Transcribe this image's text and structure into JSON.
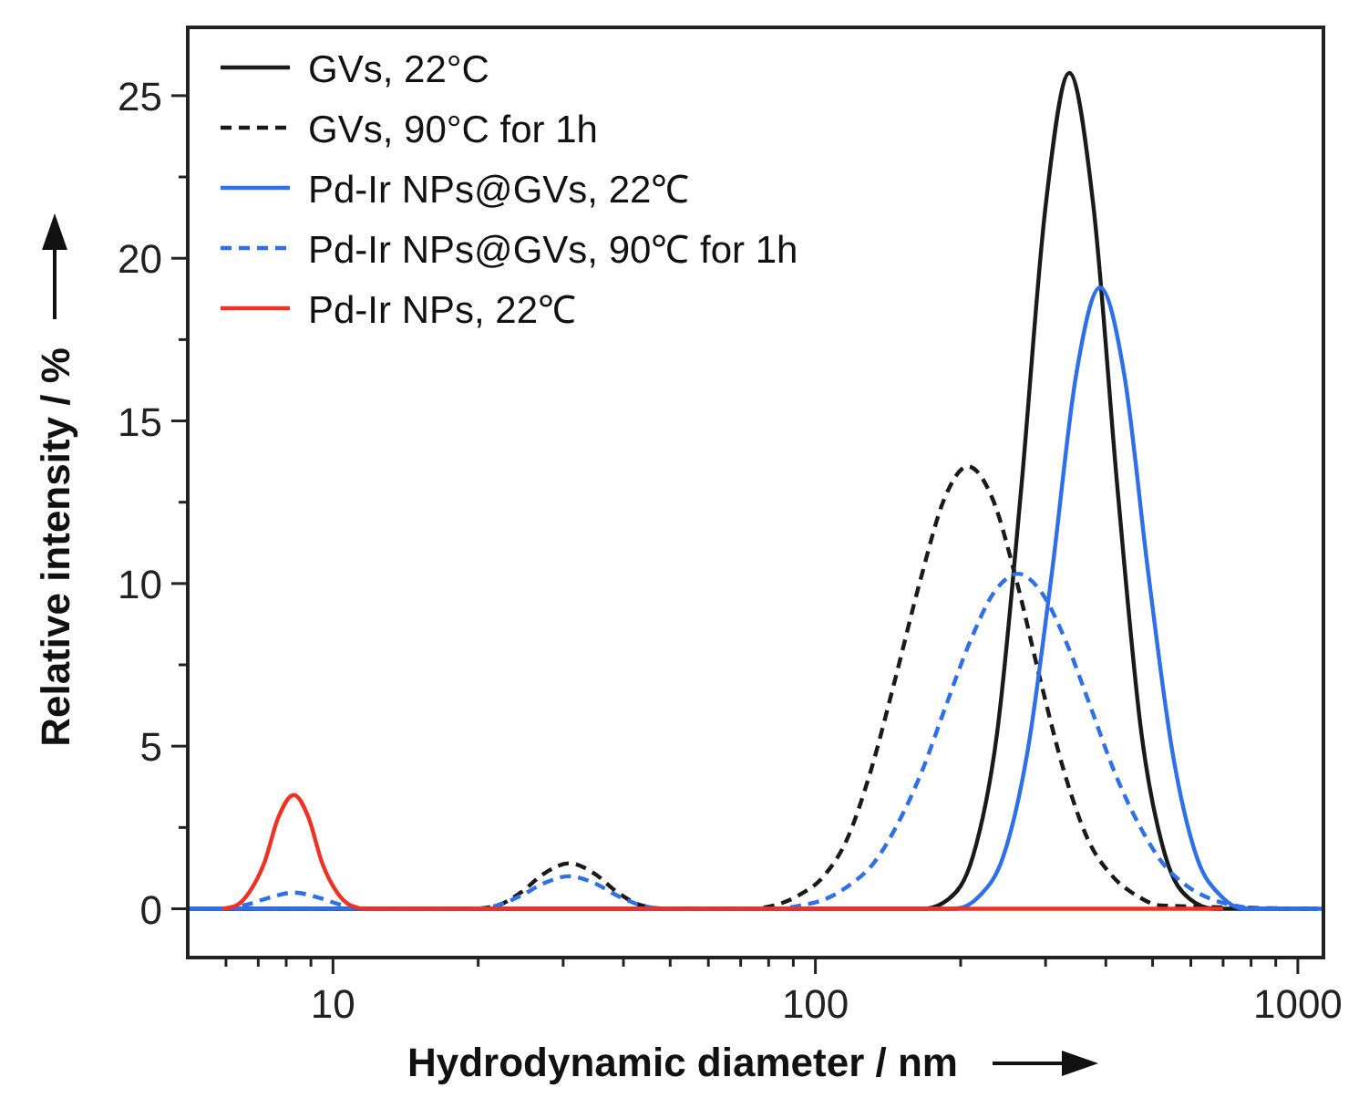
{
  "chart_data": {
    "type": "line",
    "xlabel": "Hydrodynamic diameter / nm",
    "ylabel": "Relative intensity / %",
    "log": "x",
    "grid": false,
    "legend": "top left",
    "xlim": [
      5,
      1130
    ],
    "ylim": [
      -1.5,
      27.1
    ],
    "xticks": [
      {
        "value": 6,
        "label": null
      },
      {
        "value": 7,
        "label": null
      },
      {
        "value": 8,
        "label": null
      },
      {
        "value": 9,
        "label": null
      },
      10,
      {
        "value": 20,
        "label": null
      },
      {
        "value": 30,
        "label": null
      },
      {
        "value": 40,
        "label": null
      },
      {
        "value": 50,
        "label": null
      },
      {
        "value": 60,
        "label": null
      },
      {
        "value": 70,
        "label": null
      },
      {
        "value": 80,
        "label": null
      },
      {
        "value": 90,
        "label": null
      },
      100,
      {
        "value": 200,
        "label": null
      },
      {
        "value": 300,
        "label": null
      },
      {
        "value": 400,
        "label": null
      },
      {
        "value": 500,
        "label": null
      },
      {
        "value": 600,
        "label": null
      },
      {
        "value": 700,
        "label": null
      },
      {
        "value": 800,
        "label": null
      },
      {
        "value": 900,
        "label": null
      },
      1000
    ],
    "yticks": [
      0,
      {
        "value": 2.5,
        "label": null
      },
      5,
      {
        "value": 7.5,
        "label": null
      },
      10,
      {
        "value": 12.5,
        "label": null
      },
      15,
      {
        "value": 17.5,
        "label": null
      },
      20,
      {
        "value": 22.5,
        "label": null
      },
      25
    ],
    "series": [
      {
        "name": "GVs, 22°C",
        "color": "#1a1a1a",
        "line_style": "solid",
        "x": [
          5,
          168,
          189,
          212,
          238,
          267,
          300,
          336,
          377,
          423,
          474,
          532,
          597,
          670,
          1100
        ],
        "values": [
          0,
          0,
          0.3,
          1.6,
          5.4,
          12.9,
          21.6,
          25.7,
          21.6,
          12.9,
          5.4,
          1.6,
          0.3,
          0,
          0
        ]
      },
      {
        "name": "GVs, 90°C for 1h",
        "color": "#1a1a1a",
        "line_style": "dashed",
        "x": [
          5,
          19.5,
          21.9,
          24.5,
          27.5,
          30.9,
          34.7,
          38.9,
          43.7,
          49,
          73,
          82,
          92,
          104,
          116,
          130,
          146,
          165,
          185,
          207,
          233,
          261,
          293,
          328,
          368,
          413,
          464,
          520,
          1100
        ],
        "values": [
          0,
          0,
          0.1,
          0.5,
          1.1,
          1.4,
          1.1,
          0.5,
          0.1,
          0,
          0,
          0.1,
          0.4,
          1.0,
          2.1,
          4.2,
          7.0,
          10.1,
          12.6,
          13.6,
          12.6,
          10.1,
          7.0,
          4.2,
          2.1,
          1.0,
          0.4,
          0.1,
          0
        ]
      },
      {
        "name": "Pd-Ir NPs@GVs, 22℃",
        "color": "#2f6fe8",
        "line_style": "solid",
        "x": [
          5,
          195,
          219,
          245,
          275,
          309,
          347,
          389,
          437,
          490,
          550,
          617,
          692,
          776,
          1130
        ],
        "values": [
          0,
          0,
          0.4,
          1.6,
          4.8,
          10.3,
          16.4,
          19.1,
          16.4,
          10.3,
          4.8,
          1.6,
          0.4,
          0,
          0
        ]
      },
      {
        "name": "Pd-Ir NPs@GVs, 90℃ for 1h",
        "color": "#2f6fe8",
        "line_style": "dashed",
        "x": [
          5,
          5.9,
          6.6,
          7.4,
          8.3,
          9.3,
          10.4,
          11.7,
          19.5,
          21.9,
          24.5,
          27.5,
          30.9,
          34.7,
          38.9,
          43.7,
          49,
          83,
          93,
          105,
          117,
          132,
          148,
          166,
          186,
          209,
          234,
          263,
          295,
          331,
          372,
          417,
          468,
          525,
          589,
          661,
          741,
          832,
          1130
        ],
        "values": [
          0,
          0,
          0.12,
          0.35,
          0.5,
          0.35,
          0.12,
          0,
          0,
          0.1,
          0.4,
          0.8,
          1.0,
          0.8,
          0.4,
          0.1,
          0,
          0,
          0.1,
          0.3,
          0.7,
          1.4,
          2.6,
          4.2,
          6.2,
          8.2,
          9.7,
          10.3,
          9.7,
          8.2,
          6.2,
          4.2,
          2.6,
          1.4,
          0.7,
          0.3,
          0.1,
          0,
          0
        ]
      },
      {
        "name": "Pd-Ir NPs, 22℃",
        "color": "#ee3224",
        "line_style": "solid",
        "x": [
          5.9,
          6.3,
          6.7,
          7.2,
          7.7,
          8.3,
          8.9,
          9.5,
          10.2,
          10.9,
          11.7,
          700
        ],
        "values": [
          0,
          0.1,
          0.5,
          1.4,
          2.8,
          3.5,
          2.8,
          1.4,
          0.5,
          0.1,
          0,
          0
        ]
      }
    ]
  }
}
